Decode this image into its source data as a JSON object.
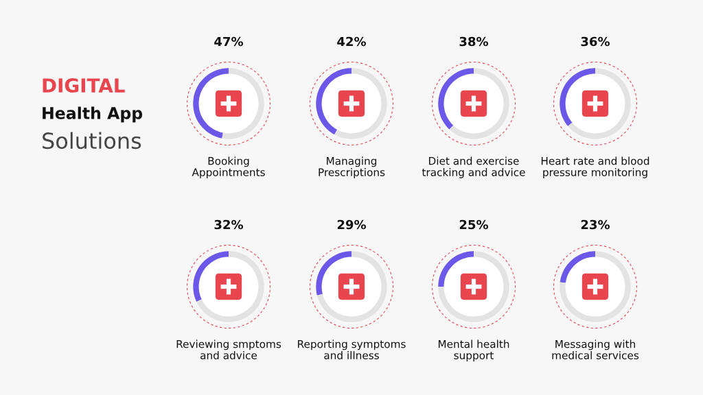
{
  "chart_data": [
    {
      "type": "other",
      "annotations": [
        "DIGITAL",
        "Health App",
        "Solutions"
      ]
    },
    {
      "type": "donut",
      "title": "Booking\nAppointments",
      "categories": [
        null,
        null
      ],
      "values": [
        47,
        53
      ],
      "colors": [
        "#6b57e8",
        "#e3e3e3"
      ],
      "value_labels": [
        "47%",
        null
      ]
    },
    {
      "type": "donut",
      "title": "Managing\nPrescriptions",
      "categories": [
        null,
        null
      ],
      "values": [
        42,
        58
      ],
      "colors": [
        "#6b57e8",
        "#e3e3e3"
      ],
      "value_labels": [
        "42%",
        null
      ]
    },
    {
      "type": "donut",
      "title": "Diet and exercise\ntracking and advice",
      "categories": [
        null,
        null
      ],
      "values": [
        38,
        62
      ],
      "colors": [
        "#6b57e8",
        "#e3e3e3"
      ],
      "value_labels": [
        "38%",
        null
      ]
    },
    {
      "type": "donut",
      "title": "Heart rate and blood\npressure monitoring",
      "categories": [
        null,
        null
      ],
      "values": [
        36,
        64
      ],
      "colors": [
        "#6b57e8",
        "#e3e3e3"
      ],
      "value_labels": [
        "36%",
        null
      ]
    },
    {
      "type": "donut",
      "title": "Reviewing smptoms\nand advice",
      "categories": [
        null,
        null
      ],
      "values": [
        32,
        68
      ],
      "colors": [
        "#6b57e8",
        "#e3e3e3"
      ],
      "value_labels": [
        "32%",
        null
      ]
    },
    {
      "type": "donut",
      "title": "Reporting symptoms\nand illness",
      "categories": [
        null,
        null
      ],
      "values": [
        29,
        71
      ],
      "colors": [
        "#6b57e8",
        "#e3e3e3"
      ],
      "value_labels": [
        "29%",
        null
      ]
    },
    {
      "type": "donut",
      "title": "Mental health\nsupport",
      "categories": [
        null,
        null
      ],
      "values": [
        25,
        75
      ],
      "colors": [
        "#6b57e8",
        "#e3e3e3"
      ],
      "value_labels": [
        "25%",
        null
      ]
    },
    {
      "type": "donut",
      "title": "Messaging with\nmedical services",
      "categories": [
        null,
        null
      ],
      "values": [
        23,
        77
      ],
      "colors": [
        "#6b57e8",
        "#e3e3e3"
      ],
      "value_labels": [
        "23%",
        null
      ]
    }
  ]
}
